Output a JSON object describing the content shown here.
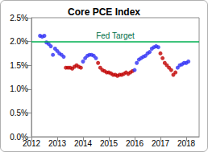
{
  "chart_data": {
    "type": "scatter",
    "title": "Core PCE Index",
    "x": [
      2012.333,
      2012.417,
      2012.5,
      2012.583,
      2012.667,
      2012.75,
      2012.833,
      2012.917,
      2013.0,
      2013.083,
      2013.167,
      2013.25,
      2013.333,
      2013.417,
      2013.5,
      2013.583,
      2013.667,
      2013.75,
      2013.833,
      2013.917,
      2014.0,
      2014.083,
      2014.167,
      2014.25,
      2014.333,
      2014.417,
      2014.5,
      2014.583,
      2014.667,
      2014.75,
      2014.833,
      2014.917,
      2015.0,
      2015.083,
      2015.167,
      2015.25,
      2015.333,
      2015.417,
      2015.5,
      2015.583,
      2015.667,
      2015.75,
      2015.833,
      2015.917,
      2016.0,
      2016.083,
      2016.167,
      2016.25,
      2016.333,
      2016.417,
      2016.5,
      2016.583,
      2016.667,
      2016.75,
      2016.833,
      2016.917,
      2017.0,
      2017.083,
      2017.167,
      2017.25,
      2017.333,
      2017.417,
      2017.5,
      2017.583,
      2017.667,
      2017.75,
      2017.833,
      2017.917,
      2018.0,
      2018.083
    ],
    "values": [
      2.12,
      2.1,
      2.12,
      1.98,
      1.95,
      1.9,
      1.72,
      1.85,
      1.8,
      1.75,
      1.72,
      1.68,
      1.45,
      1.45,
      1.45,
      1.43,
      1.47,
      1.5,
      1.47,
      1.45,
      1.58,
      1.65,
      1.7,
      1.72,
      1.72,
      1.7,
      1.65,
      1.55,
      1.45,
      1.4,
      1.38,
      1.35,
      1.35,
      1.33,
      1.3,
      1.3,
      1.28,
      1.3,
      1.3,
      1.32,
      1.35,
      1.32,
      1.35,
      1.38,
      1.4,
      1.55,
      1.62,
      1.65,
      1.68,
      1.7,
      1.75,
      1.78,
      1.85,
      1.88,
      1.9,
      1.88,
      1.75,
      1.65,
      1.55,
      1.5,
      1.45,
      1.4,
      1.3,
      1.35,
      1.45,
      1.5,
      1.52,
      1.55,
      1.55,
      1.58
    ],
    "colors": [
      "#2f2ff5",
      "#2f2ff5",
      "#2f2ff5",
      "#2f2ff5",
      "#2f2ff5",
      "#2f2ff5",
      "#2f2ff5",
      "#2f2ff5",
      "#2f2ff5",
      "#2f2ff5",
      "#2f2ff5",
      "#2f2ff5",
      "#c00000",
      "#c00000",
      "#c00000",
      "#c00000",
      "#c00000",
      "#c00000",
      "#c00000",
      "#c00000",
      "#2f2ff5",
      "#2f2ff5",
      "#2f2ff5",
      "#2f2ff5",
      "#2f2ff5",
      "#2f2ff5",
      "#2f2ff5",
      "#c00000",
      "#c00000",
      "#c00000",
      "#c00000",
      "#c00000",
      "#c00000",
      "#c00000",
      "#c00000",
      "#c00000",
      "#c00000",
      "#c00000",
      "#c00000",
      "#c00000",
      "#c00000",
      "#c00000",
      "#c00000",
      "#c00000",
      "#2f2ff5",
      "#2f2ff5",
      "#2f2ff5",
      "#2f2ff5",
      "#2f2ff5",
      "#2f2ff5",
      "#2f2ff5",
      "#2f2ff5",
      "#2f2ff5",
      "#2f2ff5",
      "#2f2ff5",
      "#2f2ff5",
      "#c00000",
      "#c00000",
      "#c00000",
      "#c00000",
      "#c00000",
      "#c00000",
      "#c00000",
      "#c00000",
      "#2f2ff5",
      "#2f2ff5",
      "#2f2ff5",
      "#2f2ff5",
      "#2f2ff5",
      "#2f2ff5"
    ],
    "marker": "circle",
    "xlim": [
      2012,
      2018.5
    ],
    "xticks": [
      2012,
      2013,
      2014,
      2015,
      2016,
      2017,
      2018
    ],
    "ylim": [
      0,
      2.5
    ],
    "yticks": [
      {
        "value": 0,
        "label": "0.0%"
      },
      {
        "value": 0.5,
        "label": "0.5%"
      },
      {
        "value": 1,
        "label": "1.0%"
      },
      {
        "value": 1.5,
        "label": "1.5%"
      },
      {
        "value": 2,
        "label": "2.0%"
      },
      {
        "value": 2.5,
        "label": "2.5%"
      }
    ],
    "grid": false,
    "annotations": [
      {
        "text": "Fed Target",
        "y": 2.0,
        "color": "#00b050"
      }
    ]
  }
}
